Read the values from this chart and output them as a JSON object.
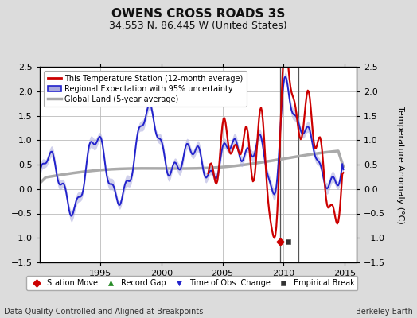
{
  "title": "OWENS CROSS ROADS 3S",
  "subtitle": "34.553 N, 86.445 W (United States)",
  "ylabel": "Temperature Anomaly (°C)",
  "footer_left": "Data Quality Controlled and Aligned at Breakpoints",
  "footer_right": "Berkeley Earth",
  "xlim": [
    1990.0,
    2016.0
  ],
  "ylim": [
    -1.5,
    2.5
  ],
  "yticks": [
    -1.5,
    -1.0,
    -0.5,
    0.0,
    0.5,
    1.0,
    1.5,
    2.0,
    2.5
  ],
  "xticks": [
    1995,
    2000,
    2005,
    2010,
    2015
  ],
  "bg_color": "#dcdcdc",
  "plot_bg_color": "#ffffff",
  "grid_color": "#bbbbbb",
  "vertical_line1": 2009.75,
  "vertical_line2": 2011.25,
  "marker_station_move_x": 2009.75,
  "marker_station_move_y": -1.08,
  "marker_empirical_break_x": 2010.4,
  "marker_empirical_break_y": -1.08,
  "station_color": "#cc0000",
  "regional_color": "#2222cc",
  "regional_band_color": "#aaaadd",
  "global_color": "#aaaaaa",
  "title_fontsize": 11,
  "subtitle_fontsize": 9,
  "tick_fontsize": 8,
  "ylabel_fontsize": 8,
  "legend_fontsize": 7,
  "footer_fontsize": 7
}
